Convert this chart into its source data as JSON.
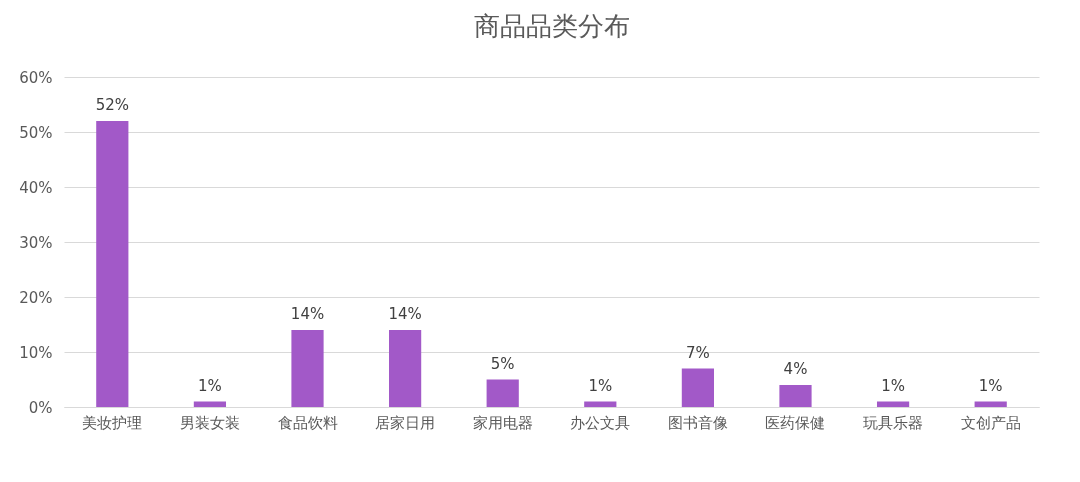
{
  "chart_data": {
    "type": "bar",
    "title": "商品品类分布",
    "categories": [
      "美妆护理",
      "男装女装",
      "食品饮料",
      "居家日用",
      "家用电器",
      "办公文具",
      "图书音像",
      "医药保健",
      "玩具乐器",
      "文创产品"
    ],
    "values": [
      52,
      1,
      14,
      14,
      5,
      1,
      7,
      4,
      1,
      1
    ],
    "value_labels": [
      "52%",
      "1%",
      "14%",
      "14%",
      "5%",
      "1%",
      "7%",
      "4%",
      "1%",
      "1%"
    ],
    "color": "#a259c8",
    "ylim": [
      0,
      60
    ],
    "yticks": [
      {
        "value": 0,
        "label": "0%"
      },
      {
        "value": 10,
        "label": "10%"
      },
      {
        "value": 20,
        "label": "20%"
      },
      {
        "value": 30,
        "label": "30%"
      },
      {
        "value": 40,
        "label": "40%"
      },
      {
        "value": 50,
        "label": "50%"
      },
      {
        "value": 60,
        "label": "60%"
      }
    ],
    "grid": "y"
  }
}
